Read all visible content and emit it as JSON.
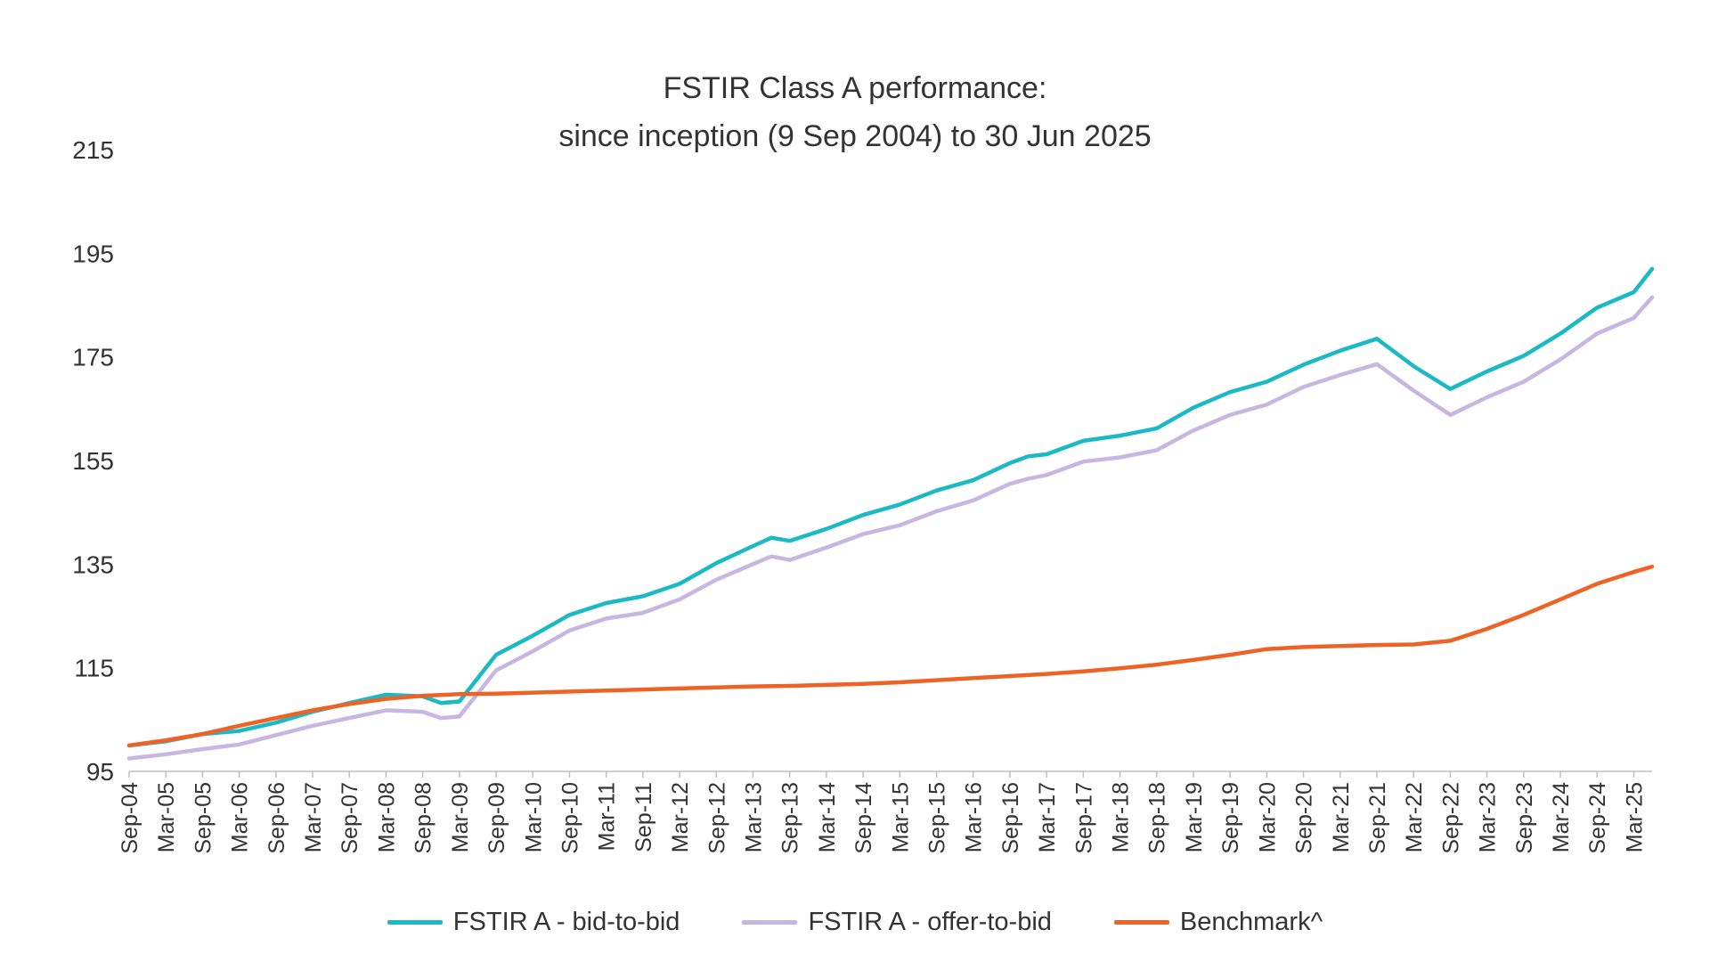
{
  "chart_data": {
    "type": "line",
    "title": [
      "FSTIR Class A performance:",
      "since inception (9 Sep 2004) to 30 Jun 2025"
    ],
    "xlabel": "",
    "ylabel": "",
    "ylim": [
      95,
      215
    ],
    "yticks": [
      95,
      115,
      135,
      155,
      175,
      195,
      215
    ],
    "x_start": "Sep-04",
    "x_end": "Jun-25",
    "xtick_labels": [
      "Sep-04",
      "Mar-05",
      "Sep-05",
      "Mar-06",
      "Sep-06",
      "Mar-07",
      "Sep-07",
      "Mar-08",
      "Sep-08",
      "Mar-09",
      "Sep-09",
      "Mar-10",
      "Sep-10",
      "Mar-11",
      "Sep-11",
      "Mar-12",
      "Sep-12",
      "Mar-13",
      "Sep-13",
      "Mar-14",
      "Sep-14",
      "Mar-15",
      "Sep-15",
      "Mar-16",
      "Sep-16",
      "Mar-17",
      "Sep-17",
      "Mar-18",
      "Sep-18",
      "Mar-19",
      "Sep-19",
      "Mar-20",
      "Sep-20",
      "Mar-21",
      "Sep-21",
      "Mar-22",
      "Sep-22",
      "Mar-23",
      "Sep-23",
      "Mar-24",
      "Sep-24",
      "Mar-25"
    ],
    "grid": false,
    "legend_position": "bottom",
    "series": [
      {
        "name": "FSTIR A - bid-to-bid",
        "color": "#1bb9c4",
        "points": [
          [
            "Sep-04",
            100
          ],
          [
            "Mar-05",
            100.8
          ],
          [
            "Sep-05",
            102.2
          ],
          [
            "Mar-06",
            102.8
          ],
          [
            "Sep-06",
            104.4
          ],
          [
            "Mar-07",
            106.5
          ],
          [
            "Sep-07",
            108.2
          ],
          [
            "Mar-08",
            109.8
          ],
          [
            "Sep-08",
            109.5
          ],
          [
            "Dec-08",
            108.2
          ],
          [
            "Mar-09",
            108.5
          ],
          [
            "Sep-09",
            117.5
          ],
          [
            "Mar-10",
            121.2
          ],
          [
            "Sep-10",
            125.2
          ],
          [
            "Mar-11",
            127.5
          ],
          [
            "Sep-11",
            128.8
          ],
          [
            "Mar-12",
            131.2
          ],
          [
            "Sep-12",
            135.2
          ],
          [
            "Mar-13",
            138.5
          ],
          [
            "Jun-13",
            140.1
          ],
          [
            "Sep-13",
            139.5
          ],
          [
            "Mar-14",
            141.8
          ],
          [
            "Sep-14",
            144.5
          ],
          [
            "Mar-15",
            146.5
          ],
          [
            "Sep-15",
            149.2
          ],
          [
            "Mar-16",
            151.2
          ],
          [
            "Sep-16",
            154.5
          ],
          [
            "Dec-16",
            155.8
          ],
          [
            "Mar-17",
            156.2
          ],
          [
            "Sep-17",
            158.8
          ],
          [
            "Mar-18",
            159.8
          ],
          [
            "Sep-18",
            161.2
          ],
          [
            "Mar-19",
            165.2
          ],
          [
            "Sep-19",
            168.2
          ],
          [
            "Mar-20",
            170.2
          ],
          [
            "Sep-20",
            173.5
          ],
          [
            "Mar-21",
            176.2
          ],
          [
            "Sep-21",
            178.5
          ],
          [
            "Mar-22",
            173.2
          ],
          [
            "Sep-22",
            168.8
          ],
          [
            "Mar-23",
            172.2
          ],
          [
            "Sep-23",
            175.2
          ],
          [
            "Mar-24",
            179.5
          ],
          [
            "Sep-24",
            184.5
          ],
          [
            "Mar-25",
            187.5
          ],
          [
            "Jun-25",
            192.0
          ]
        ]
      },
      {
        "name": "FSTIR A - offer-to-bid",
        "color": "#c7b6e2",
        "points": [
          [
            "Sep-04",
            97.5
          ],
          [
            "Mar-05",
            98.3
          ],
          [
            "Sep-05",
            99.3
          ],
          [
            "Mar-06",
            100.2
          ],
          [
            "Sep-06",
            102.0
          ],
          [
            "Mar-07",
            103.8
          ],
          [
            "Sep-07",
            105.3
          ],
          [
            "Mar-08",
            106.8
          ],
          [
            "Sep-08",
            106.5
          ],
          [
            "Dec-08",
            105.3
          ],
          [
            "Mar-09",
            105.6
          ],
          [
            "Sep-09",
            114.5
          ],
          [
            "Mar-10",
            118.2
          ],
          [
            "Sep-10",
            122.2
          ],
          [
            "Mar-11",
            124.5
          ],
          [
            "Sep-11",
            125.6
          ],
          [
            "Mar-12",
            128.2
          ],
          [
            "Sep-12",
            132.0
          ],
          [
            "Mar-13",
            135.0
          ],
          [
            "Jun-13",
            136.5
          ],
          [
            "Sep-13",
            135.8
          ],
          [
            "Mar-14",
            138.2
          ],
          [
            "Sep-14",
            140.8
          ],
          [
            "Mar-15",
            142.5
          ],
          [
            "Sep-15",
            145.2
          ],
          [
            "Mar-16",
            147.3
          ],
          [
            "Sep-16",
            150.5
          ],
          [
            "Dec-16",
            151.5
          ],
          [
            "Mar-17",
            152.2
          ],
          [
            "Sep-17",
            154.8
          ],
          [
            "Mar-18",
            155.6
          ],
          [
            "Sep-18",
            157.0
          ],
          [
            "Mar-19",
            160.8
          ],
          [
            "Sep-19",
            163.8
          ],
          [
            "Mar-20",
            165.8
          ],
          [
            "Sep-20",
            169.2
          ],
          [
            "Mar-21",
            171.5
          ],
          [
            "Sep-21",
            173.6
          ],
          [
            "Mar-22",
            168.5
          ],
          [
            "Sep-22",
            163.8
          ],
          [
            "Mar-23",
            167.2
          ],
          [
            "Sep-23",
            170.2
          ],
          [
            "Mar-24",
            174.5
          ],
          [
            "Sep-24",
            179.5
          ],
          [
            "Mar-25",
            182.5
          ],
          [
            "Jun-25",
            186.5
          ]
        ]
      },
      {
        "name": "Benchmark^",
        "color": "#ee6325",
        "points": [
          [
            "Sep-04",
            100
          ],
          [
            "Mar-05",
            101.0
          ],
          [
            "Sep-05",
            102.2
          ],
          [
            "Mar-06",
            103.8
          ],
          [
            "Sep-06",
            105.3
          ],
          [
            "Mar-07",
            106.8
          ],
          [
            "Sep-07",
            108.0
          ],
          [
            "Mar-08",
            109.0
          ],
          [
            "Sep-08",
            109.6
          ],
          [
            "Mar-09",
            109.9
          ],
          [
            "Sep-09",
            110.0
          ],
          [
            "Mar-10",
            110.2
          ],
          [
            "Sep-10",
            110.4
          ],
          [
            "Mar-11",
            110.6
          ],
          [
            "Sep-11",
            110.8
          ],
          [
            "Mar-12",
            111.0
          ],
          [
            "Sep-12",
            111.2
          ],
          [
            "Mar-13",
            111.4
          ],
          [
            "Sep-13",
            111.5
          ],
          [
            "Mar-14",
            111.7
          ],
          [
            "Sep-14",
            111.9
          ],
          [
            "Mar-15",
            112.2
          ],
          [
            "Sep-15",
            112.6
          ],
          [
            "Mar-16",
            113.0
          ],
          [
            "Sep-16",
            113.4
          ],
          [
            "Mar-17",
            113.8
          ],
          [
            "Sep-17",
            114.3
          ],
          [
            "Mar-18",
            114.9
          ],
          [
            "Sep-18",
            115.6
          ],
          [
            "Mar-19",
            116.5
          ],
          [
            "Sep-19",
            117.5
          ],
          [
            "Mar-20",
            118.6
          ],
          [
            "Sep-20",
            119.0
          ],
          [
            "Mar-21",
            119.2
          ],
          [
            "Sep-21",
            119.4
          ],
          [
            "Mar-22",
            119.5
          ],
          [
            "Sep-22",
            120.2
          ],
          [
            "Mar-23",
            122.5
          ],
          [
            "Sep-23",
            125.2
          ],
          [
            "Mar-24",
            128.2
          ],
          [
            "Sep-24",
            131.2
          ],
          [
            "Mar-25",
            133.5
          ],
          [
            "Jun-25",
            134.5
          ]
        ]
      }
    ]
  }
}
